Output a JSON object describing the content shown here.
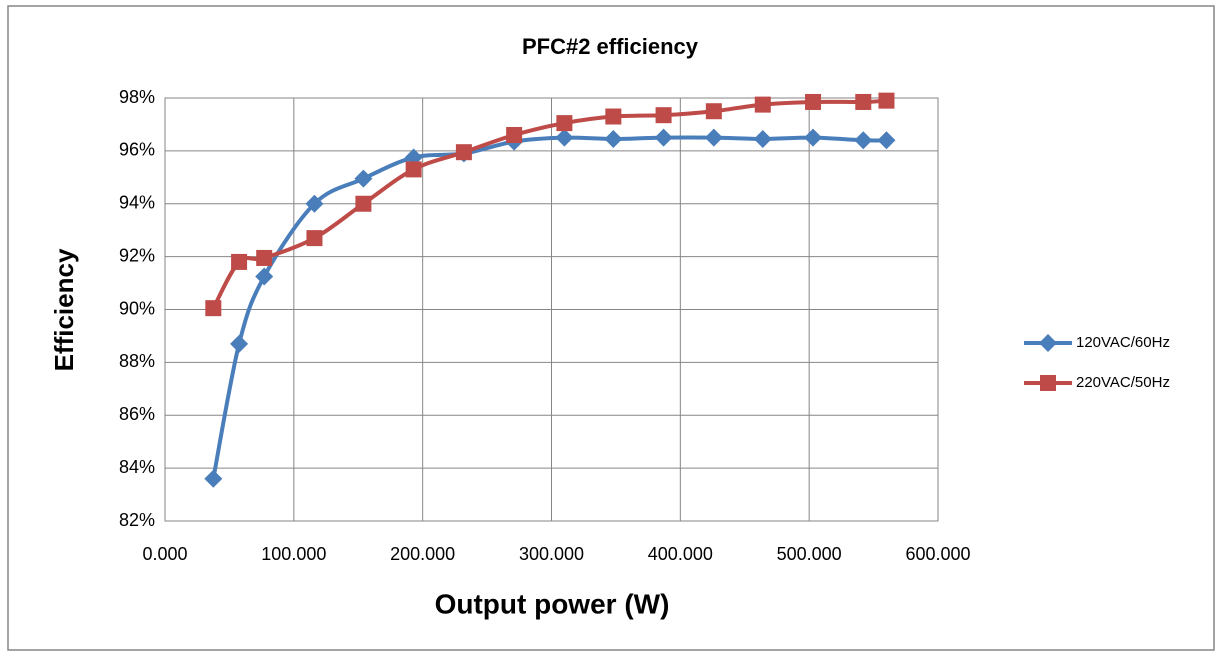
{
  "chart_data": {
    "type": "scatter",
    "title": "PFC#2 efficiency",
    "x_label": "Output power (W)",
    "y_label": "Efficiency",
    "x": [
      37.5,
      57.5,
      77,
      116,
      154,
      193,
      232,
      271,
      310,
      348,
      387,
      426,
      464,
      503,
      542,
      560
    ],
    "series": [
      {
        "name": "120VAC/60Hz",
        "color": "#4a7ebb",
        "marker": "diamond",
        "values": [
          83.6,
          88.7,
          91.25,
          94.0,
          94.95,
          95.75,
          95.9,
          96.35,
          96.5,
          96.45,
          96.5,
          96.5,
          96.45,
          96.5,
          96.4,
          96.4
        ]
      },
      {
        "name": "220VAC/50Hz",
        "color": "#be4b48",
        "marker": "square",
        "values": [
          90.05,
          91.8,
          91.95,
          92.7,
          94.0,
          95.3,
          95.95,
          96.6,
          97.05,
          97.3,
          97.35,
          97.5,
          97.75,
          97.85,
          97.85,
          97.9
        ]
      }
    ],
    "xlim": [
      0,
      600
    ],
    "xticks": [
      {
        "value": 0,
        "label": "0.000"
      },
      {
        "value": 100,
        "label": "100.000"
      },
      {
        "value": 200,
        "label": "200.000"
      },
      {
        "value": 300,
        "label": "300.000"
      },
      {
        "value": 400,
        "label": "400.000"
      },
      {
        "value": 500,
        "label": "500.000"
      },
      {
        "value": 600,
        "label": "600.000"
      }
    ],
    "ylim": [
      82,
      98
    ],
    "yticks": [
      {
        "value": 82,
        "label": "82%"
      },
      {
        "value": 84,
        "label": "84%"
      },
      {
        "value": 86,
        "label": "86%"
      },
      {
        "value": 88,
        "label": "88%"
      },
      {
        "value": 90,
        "label": "90%"
      },
      {
        "value": 92,
        "label": "92%"
      },
      {
        "value": 94,
        "label": "94%"
      },
      {
        "value": 96,
        "label": "96%"
      },
      {
        "value": 98,
        "label": "98%"
      }
    ],
    "grid": true,
    "legend": "right"
  }
}
